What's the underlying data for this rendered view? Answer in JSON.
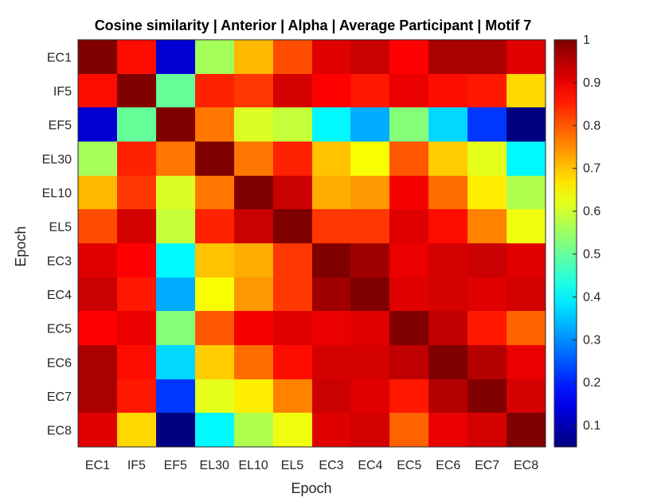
{
  "chart_data": {
    "type": "heatmap",
    "title": "Cosine similarity | Anterior | Alpha | Average Participant | Motif 7",
    "xlabel": "Epoch",
    "ylabel": "Epoch",
    "x_categories": [
      "EC1",
      "IF5",
      "EF5",
      "EL30",
      "EL10",
      "EL5",
      "EC3",
      "EC4",
      "EC5",
      "EC6",
      "EC7",
      "EC8"
    ],
    "y_categories": [
      "EC1",
      "IF5",
      "EF5",
      "EL30",
      "EL10",
      "EL5",
      "EC3",
      "EC4",
      "EC5",
      "EC6",
      "EC7",
      "EC8"
    ],
    "colormap": "jet",
    "clim": [
      0.05,
      1
    ],
    "colorbar_ticks": [
      "0.1",
      "0.2",
      "0.3",
      "0.4",
      "0.5",
      "0.6",
      "0.7",
      "0.8",
      "0.9",
      "1"
    ],
    "values": [
      [
        1.0,
        0.87,
        0.13,
        0.56,
        0.71,
        0.81,
        0.91,
        0.93,
        0.88,
        0.96,
        0.96,
        0.91
      ],
      [
        0.87,
        1.0,
        0.5,
        0.85,
        0.83,
        0.92,
        0.88,
        0.86,
        0.9,
        0.87,
        0.86,
        0.68
      ],
      [
        0.13,
        0.5,
        1.0,
        0.77,
        0.61,
        0.59,
        0.4,
        0.33,
        0.53,
        0.37,
        0.22,
        0.05
      ],
      [
        0.56,
        0.85,
        0.77,
        1.0,
        0.77,
        0.85,
        0.7,
        0.64,
        0.8,
        0.69,
        0.62,
        0.4
      ],
      [
        0.71,
        0.83,
        0.61,
        0.77,
        1.0,
        0.93,
        0.72,
        0.74,
        0.89,
        0.78,
        0.66,
        0.57
      ],
      [
        0.81,
        0.92,
        0.59,
        0.85,
        0.93,
        1.0,
        0.83,
        0.83,
        0.91,
        0.87,
        0.76,
        0.63
      ],
      [
        0.91,
        0.88,
        0.4,
        0.7,
        0.72,
        0.83,
        1.0,
        0.97,
        0.9,
        0.92,
        0.93,
        0.91
      ],
      [
        0.93,
        0.86,
        0.33,
        0.64,
        0.74,
        0.83,
        0.97,
        1.0,
        0.91,
        0.92,
        0.91,
        0.92
      ],
      [
        0.88,
        0.9,
        0.53,
        0.8,
        0.89,
        0.91,
        0.9,
        0.91,
        1.0,
        0.94,
        0.86,
        0.79
      ],
      [
        0.96,
        0.87,
        0.37,
        0.69,
        0.78,
        0.87,
        0.92,
        0.92,
        0.94,
        1.0,
        0.95,
        0.9
      ],
      [
        0.96,
        0.86,
        0.22,
        0.62,
        0.66,
        0.76,
        0.93,
        0.91,
        0.86,
        0.95,
        1.0,
        0.92
      ],
      [
        0.91,
        0.68,
        0.05,
        0.4,
        0.57,
        0.63,
        0.91,
        0.92,
        0.79,
        0.9,
        0.92,
        1.0
      ]
    ]
  }
}
